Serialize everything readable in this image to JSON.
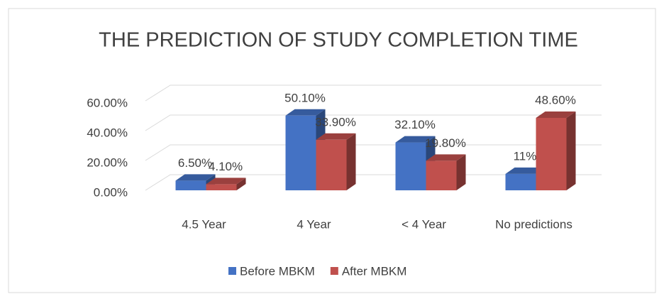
{
  "chart_data": {
    "type": "bar3d",
    "title": "THE PREDICTION OF STUDY COMPLETION TIME",
    "categories": [
      "4.5 Year",
      "4 Year",
      "< 4 Year",
      "No predictions"
    ],
    "series": [
      {
        "name": "Before MBKM",
        "color": "#4472c4",
        "values": [
          6.5,
          50.1,
          32.1,
          11
        ],
        "value_labels": [
          "6.50%",
          "50.10%",
          "32.10%",
          "11%"
        ]
      },
      {
        "name": "After MBKM",
        "color": "#c0504d",
        "values": [
          4.1,
          33.9,
          19.8,
          48.6
        ],
        "value_labels": [
          "4.10%",
          "33.90%",
          "19.80%",
          "48.60%"
        ]
      }
    ],
    "ylim": [
      0,
      60
    ],
    "yticks": [
      {
        "value": 0,
        "label": "0.00%"
      },
      {
        "value": 20,
        "label": "20.00%"
      },
      {
        "value": 40,
        "label": "40.00%"
      },
      {
        "value": 60,
        "label": "60.00%"
      }
    ],
    "grid": true,
    "legend": "bottom"
  }
}
